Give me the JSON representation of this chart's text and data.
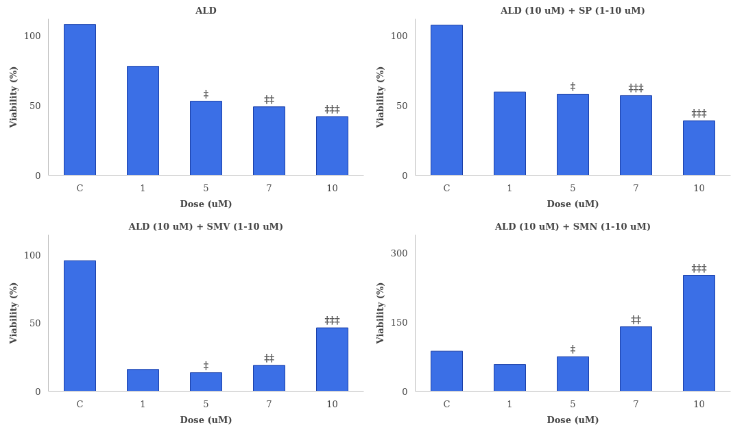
{
  "chart_data": [
    {
      "type": "bar",
      "title": "ALD",
      "xlabel": "Dose (uM)",
      "ylabel": "Viability (%)",
      "categories": [
        "C",
        "1",
        "5",
        "7",
        "10"
      ],
      "values": [
        108,
        78,
        53,
        49,
        42
      ],
      "color": "#3b6fe6",
      "ylim": [
        0,
        112
      ],
      "yticks": [
        0,
        50,
        100
      ],
      "grid": false,
      "annotations": [
        {
          "text": "‡",
          "x": "5",
          "y": 53
        },
        {
          "text": "‡‡",
          "x": "7",
          "y": 49
        },
        {
          "text": "‡‡‡",
          "x": "10",
          "y": 42
        }
      ]
    },
    {
      "type": "bar",
      "title": "ALD (10 uM) + SP (1-10 uM)",
      "xlabel": "Dose (uM)",
      "ylabel": "Viability (%)",
      "categories": [
        "C",
        "1",
        "5",
        "7",
        "10"
      ],
      "values": [
        107.5,
        59.6,
        58,
        57,
        39
      ],
      "color": "#3b6fe6",
      "ylim": [
        0,
        112
      ],
      "yticks": [
        0,
        50,
        100
      ],
      "grid": false,
      "annotations": [
        {
          "text": "‡",
          "x": "5",
          "y": 58
        },
        {
          "text": "‡‡‡",
          "x": "7",
          "y": 57
        },
        {
          "text": "‡‡‡",
          "x": "10",
          "y": 39
        }
      ]
    },
    {
      "type": "bar",
      "title": "ALD (10 uM) + SMV (1-10 uM)",
      "xlabel": "Dose (uM)",
      "ylabel": "Viability (%)",
      "categories": [
        "C",
        "1",
        "5",
        "7",
        "10"
      ],
      "values": [
        96,
        16,
        13.6,
        19,
        46.6
      ],
      "color": "#3b6fe6",
      "ylim": [
        0,
        115
      ],
      "yticks": [
        0,
        50,
        100
      ],
      "grid": false,
      "annotations": [
        {
          "text": "‡",
          "x": "5",
          "y": 13.6
        },
        {
          "text": "‡‡",
          "x": "7",
          "y": 19
        },
        {
          "text": "‡‡‡",
          "x": "10",
          "y": 46.6
        }
      ]
    },
    {
      "type": "bar",
      "title": "ALD (10 uM) + SMN (1-10 uM)",
      "xlabel": "Dose (uM)",
      "ylabel": "Viability (%)",
      "categories": [
        "C",
        "1",
        "5",
        "7",
        "10"
      ],
      "values": [
        87,
        58,
        75,
        140,
        252
      ],
      "color": "#3b6fe6",
      "ylim": [
        0,
        340
      ],
      "yticks": [
        0,
        150,
        300
      ],
      "grid": false,
      "annotations": [
        {
          "text": "‡",
          "x": "5",
          "y": 75
        },
        {
          "text": "‡‡",
          "x": "7",
          "y": 140
        },
        {
          "text": "‡‡‡",
          "x": "10",
          "y": 252
        }
      ]
    }
  ]
}
